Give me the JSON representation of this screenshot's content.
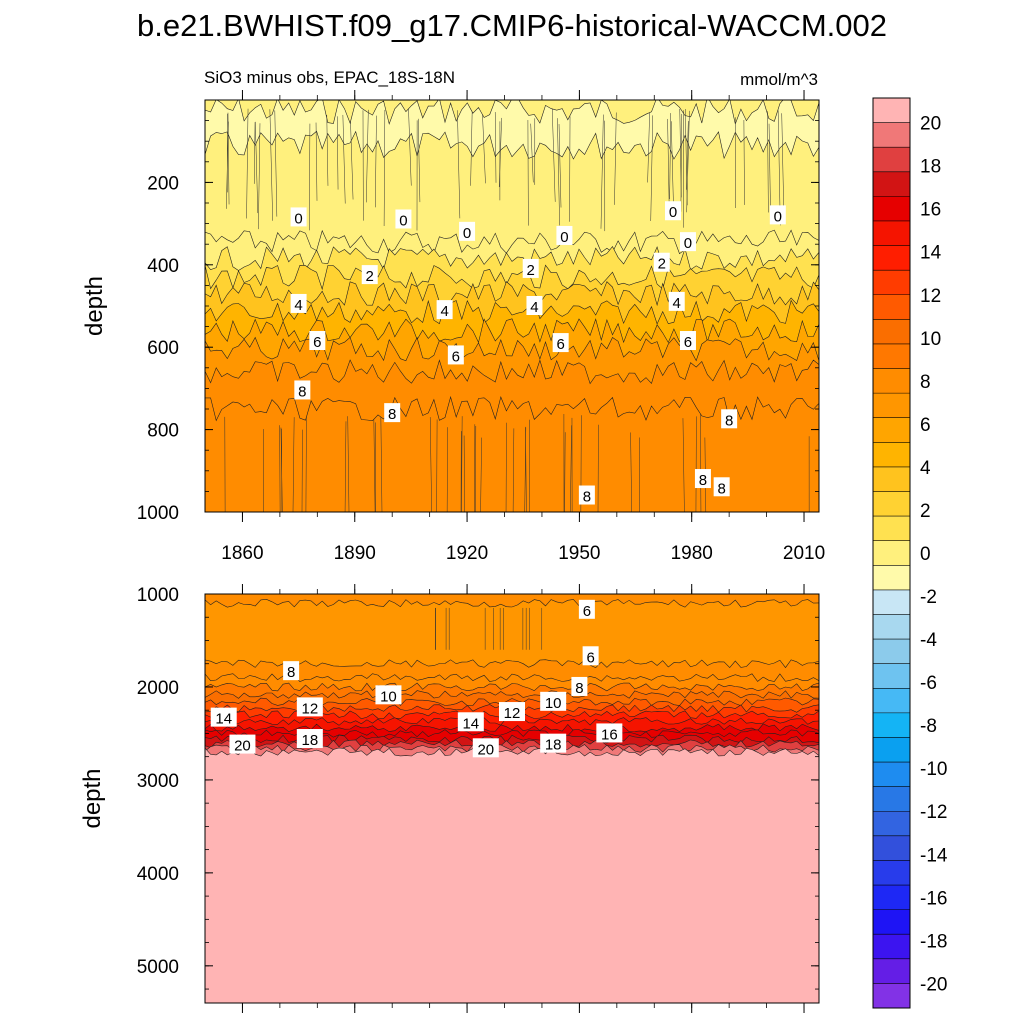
{
  "figure": {
    "title": "b.e21.BWHIST.f09_g17.CMIP6-historical-WACCM.002",
    "subtitle_left": "SiO3 minus obs, EPAC_18S-18N",
    "subtitle_right": "mmol/m^3"
  },
  "chart_data": [
    {
      "type": "heatmap",
      "name": "upper panel",
      "xlabel": "",
      "ylabel": "depth",
      "xlim": [
        1850,
        2014
      ],
      "ylim": [
        1000,
        0
      ],
      "x_ticks": [
        1860,
        1890,
        1920,
        1950,
        1980,
        2010
      ],
      "y_ticks": [
        200,
        400,
        600,
        800,
        1000
      ],
      "contour_bands": [
        {
          "depth_top": 0,
          "depth_bottom": 25,
          "value": 0.5
        },
        {
          "depth_top": 25,
          "depth_bottom": 110,
          "value": -1.5
        },
        {
          "depth_top": 110,
          "depth_bottom": 345,
          "value": -0.5
        },
        {
          "depth_top": 345,
          "depth_bottom": 385,
          "value": 0.5
        },
        {
          "depth_top": 385,
          "depth_bottom": 430,
          "value": 1.5
        },
        {
          "depth_top": 430,
          "depth_bottom": 470,
          "value": 2.5
        },
        {
          "depth_top": 470,
          "depth_bottom": 515,
          "value": 3.5
        },
        {
          "depth_top": 515,
          "depth_bottom": 560,
          "value": 4.5
        },
        {
          "depth_top": 560,
          "depth_bottom": 605,
          "value": 5.5
        },
        {
          "depth_top": 605,
          "depth_bottom": 660,
          "value": 6.5
        },
        {
          "depth_top": 660,
          "depth_bottom": 750,
          "value": 7.5
        },
        {
          "depth_top": 750,
          "depth_bottom": 1000,
          "value": 8.5
        }
      ],
      "contour_labels": [
        {
          "x": 1875,
          "depth": 285,
          "text": "0"
        },
        {
          "x": 1903,
          "depth": 290,
          "text": "0"
        },
        {
          "x": 1920,
          "depth": 320,
          "text": "0"
        },
        {
          "x": 1946,
          "depth": 330,
          "text": "0"
        },
        {
          "x": 1975,
          "depth": 270,
          "text": "0"
        },
        {
          "x": 1979,
          "depth": 345,
          "text": "0"
        },
        {
          "x": 2003,
          "depth": 280,
          "text": "0"
        },
        {
          "x": 1894,
          "depth": 425,
          "text": "2"
        },
        {
          "x": 1937,
          "depth": 410,
          "text": "2"
        },
        {
          "x": 1972,
          "depth": 395,
          "text": "2"
        },
        {
          "x": 1875,
          "depth": 495,
          "text": "4"
        },
        {
          "x": 1914,
          "depth": 510,
          "text": "4"
        },
        {
          "x": 1938,
          "depth": 500,
          "text": "4"
        },
        {
          "x": 1976,
          "depth": 490,
          "text": "4"
        },
        {
          "x": 1880,
          "depth": 585,
          "text": "6"
        },
        {
          "x": 1917,
          "depth": 620,
          "text": "6"
        },
        {
          "x": 1945,
          "depth": 590,
          "text": "6"
        },
        {
          "x": 1979,
          "depth": 585,
          "text": "6"
        },
        {
          "x": 1876,
          "depth": 705,
          "text": "8"
        },
        {
          "x": 1900,
          "depth": 760,
          "text": "8"
        },
        {
          "x": 1990,
          "depth": 775,
          "text": "8"
        },
        {
          "x": 1983,
          "depth": 920,
          "text": "8"
        },
        {
          "x": 1988,
          "depth": 940,
          "text": "8"
        },
        {
          "x": 1952,
          "depth": 960,
          "text": "8"
        }
      ]
    },
    {
      "type": "heatmap",
      "name": "lower panel",
      "xlabel": "",
      "ylabel": "depth",
      "xlim": [
        1850,
        2014
      ],
      "ylim": [
        5400,
        1000
      ],
      "x_ticks": [
        1860,
        1890,
        1920,
        1950,
        1980,
        2010
      ],
      "y_ticks": [
        1000,
        2000,
        3000,
        4000,
        5000
      ],
      "contour_bands": [
        {
          "depth_top": 1000,
          "depth_bottom": 1100,
          "value": 7.5
        },
        {
          "depth_top": 1100,
          "depth_bottom": 1750,
          "value": 6.5
        },
        {
          "depth_top": 1750,
          "depth_bottom": 1900,
          "value": 7.5
        },
        {
          "depth_top": 1900,
          "depth_bottom": 2000,
          "value": 8.5
        },
        {
          "depth_top": 2000,
          "depth_bottom": 2080,
          "value": 9.5
        },
        {
          "depth_top": 2080,
          "depth_bottom": 2160,
          "value": 10.5
        },
        {
          "depth_top": 2160,
          "depth_bottom": 2230,
          "value": 11.5
        },
        {
          "depth_top": 2230,
          "depth_bottom": 2300,
          "value": 12.5
        },
        {
          "depth_top": 2300,
          "depth_bottom": 2370,
          "value": 13.5
        },
        {
          "depth_top": 2370,
          "depth_bottom": 2440,
          "value": 14.5
        },
        {
          "depth_top": 2440,
          "depth_bottom": 2500,
          "value": 15.5
        },
        {
          "depth_top": 2500,
          "depth_bottom": 2560,
          "value": 16.5
        },
        {
          "depth_top": 2560,
          "depth_bottom": 2610,
          "value": 17.5
        },
        {
          "depth_top": 2610,
          "depth_bottom": 2660,
          "value": 18.5
        },
        {
          "depth_top": 2660,
          "depth_bottom": 2700,
          "value": 19.5
        },
        {
          "depth_top": 2700,
          "depth_bottom": 5400,
          "value": 21
        }
      ],
      "contour_labels": [
        {
          "x": 1952,
          "depth": 1170,
          "text": "6"
        },
        {
          "x": 1953,
          "depth": 1670,
          "text": "6"
        },
        {
          "x": 1873,
          "depth": 1830,
          "text": "8"
        },
        {
          "x": 1950,
          "depth": 2000,
          "text": "8"
        },
        {
          "x": 1899,
          "depth": 2090,
          "text": "10"
        },
        {
          "x": 1943,
          "depth": 2160,
          "text": "10"
        },
        {
          "x": 1878,
          "depth": 2220,
          "text": "12"
        },
        {
          "x": 1932,
          "depth": 2270,
          "text": "12"
        },
        {
          "x": 1855,
          "depth": 2330,
          "text": "14"
        },
        {
          "x": 1921,
          "depth": 2380,
          "text": "14"
        },
        {
          "x": 1958,
          "depth": 2500,
          "text": "16"
        },
        {
          "x": 1878,
          "depth": 2560,
          "text": "18"
        },
        {
          "x": 1943,
          "depth": 2610,
          "text": "18"
        },
        {
          "x": 1860,
          "depth": 2620,
          "text": "20"
        },
        {
          "x": 1925,
          "depth": 2660,
          "text": "20"
        }
      ]
    },
    {
      "type": "heatmap",
      "name": "colorbar",
      "levels": [
        -20,
        -18,
        -16,
        -14,
        -12,
        -10,
        -8,
        -6,
        -4,
        -2,
        0,
        2,
        4,
        6,
        8,
        10,
        12,
        14,
        16,
        18,
        20
      ],
      "tick_labels": [
        "20",
        "18",
        "16",
        "14",
        "12",
        "10",
        "8",
        "6",
        "4",
        "2",
        "0",
        "-2",
        "-4",
        "-6",
        "-8",
        "-10",
        "-12",
        "-14",
        "-16",
        "-18",
        "-20"
      ],
      "colors_high_to_low": [
        "#ffb4b4",
        "#f07878",
        "#e04040",
        "#d21414",
        "#e60000",
        "#f51400",
        "#ff1e00",
        "#ff3c00",
        "#ff5a00",
        "#fa6e00",
        "#ff7800",
        "#ff8c00",
        "#ff9600",
        "#ffa500",
        "#ffb400",
        "#ffc31e",
        "#ffd232",
        "#ffe150",
        "#fff07d",
        "#fffaaa",
        "#c8e6f5",
        "#a8d8ef",
        "#8ccbeb",
        "#6ec3f0",
        "#46b9f5",
        "#14b4f5",
        "#0aa0f0",
        "#1e8cf0",
        "#2878e6",
        "#3264e1",
        "#3250dc",
        "#283ceb",
        "#1e28f5",
        "#1e14f5",
        "#3c14f0",
        "#641ee6",
        "#8232e6"
      ]
    }
  ]
}
